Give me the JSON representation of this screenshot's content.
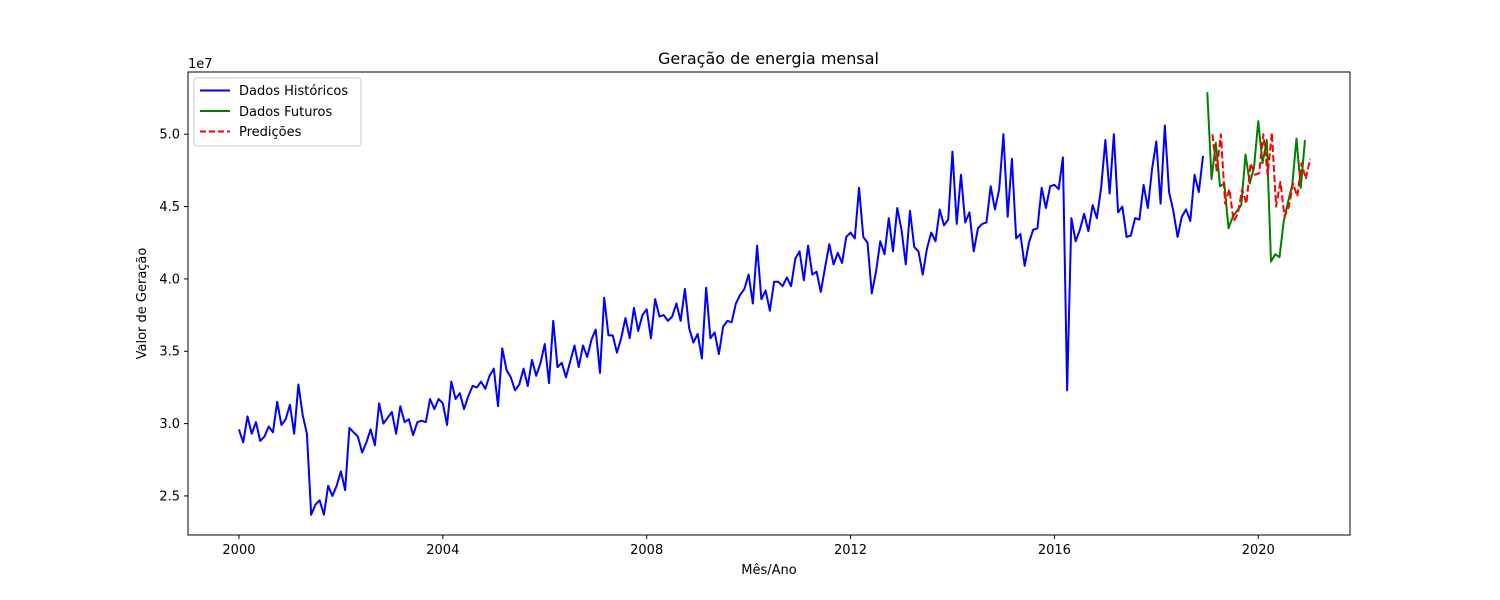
{
  "chart_data": {
    "type": "line",
    "title": "Geração de energia mensal",
    "xlabel": "Mês/Ano",
    "ylabel": "Valor de Geração",
    "y_offset_label": "1e7",
    "y_scale_factor": 10000000,
    "xlim": [
      1999.0,
      2021.8
    ],
    "ylim": [
      2.23,
      5.43
    ],
    "x_ticks": [
      2000,
      2004,
      2008,
      2012,
      2016,
      2020
    ],
    "y_ticks": [
      2.5,
      3.0,
      3.5,
      4.0,
      4.5,
      5.0
    ],
    "y_tick_labels": [
      "2.5",
      "3.0",
      "3.5",
      "4.0",
      "4.5",
      "5.0"
    ],
    "grid": false,
    "legend_position": "top-left",
    "series": [
      {
        "name": "Dados Históricos",
        "color": "#0000ff",
        "style": "solid",
        "start_year": 2000,
        "step_months": 1,
        "values": [
          2.96,
          2.87,
          3.05,
          2.93,
          3.01,
          2.88,
          2.91,
          2.98,
          2.94,
          3.15,
          2.99,
          3.03,
          3.13,
          2.93,
          3.27,
          3.06,
          2.93,
          2.37,
          2.44,
          2.47,
          2.37,
          2.57,
          2.5,
          2.57,
          2.67,
          2.54,
          2.97,
          2.94,
          2.91,
          2.8,
          2.87,
          2.96,
          2.85,
          3.14,
          3.0,
          3.04,
          3.08,
          2.93,
          3.12,
          3.01,
          3.03,
          2.92,
          3.01,
          3.02,
          3.01,
          3.17,
          3.1,
          3.17,
          3.14,
          2.99,
          3.29,
          3.17,
          3.21,
          3.1,
          3.19,
          3.26,
          3.25,
          3.29,
          3.24,
          3.33,
          3.38,
          3.12,
          3.52,
          3.37,
          3.32,
          3.23,
          3.27,
          3.38,
          3.26,
          3.44,
          3.33,
          3.42,
          3.55,
          3.28,
          3.71,
          3.39,
          3.42,
          3.32,
          3.43,
          3.54,
          3.39,
          3.54,
          3.46,
          3.58,
          3.65,
          3.35,
          3.87,
          3.61,
          3.61,
          3.49,
          3.59,
          3.73,
          3.59,
          3.8,
          3.64,
          3.75,
          3.79,
          3.59,
          3.86,
          3.74,
          3.75,
          3.71,
          3.74,
          3.83,
          3.71,
          3.93,
          3.66,
          3.56,
          3.62,
          3.45,
          3.94,
          3.59,
          3.63,
          3.48,
          3.67,
          3.71,
          3.7,
          3.83,
          3.89,
          3.93,
          4.03,
          3.83,
          4.23,
          3.86,
          3.92,
          3.78,
          3.98,
          3.98,
          3.95,
          4.01,
          3.95,
          4.14,
          4.19,
          3.99,
          4.23,
          4.03,
          4.05,
          3.91,
          4.08,
          4.24,
          4.1,
          4.18,
          4.11,
          4.29,
          4.32,
          4.28,
          4.63,
          4.29,
          4.25,
          3.9,
          4.05,
          4.26,
          4.17,
          4.42,
          4.19,
          4.49,
          4.34,
          4.1,
          4.47,
          4.22,
          4.19,
          4.03,
          4.21,
          4.32,
          4.26,
          4.48,
          4.37,
          4.41,
          4.88,
          4.38,
          4.72,
          4.39,
          4.46,
          4.19,
          4.35,
          4.38,
          4.39,
          4.64,
          4.48,
          4.62,
          5.0,
          4.43,
          4.83,
          4.28,
          4.31,
          4.09,
          4.25,
          4.34,
          4.35,
          4.63,
          4.49,
          4.64,
          4.65,
          4.62,
          4.84,
          3.23,
          4.42,
          4.26,
          4.34,
          4.45,
          4.33,
          4.51,
          4.42,
          4.63,
          4.96,
          4.59,
          5.0,
          4.46,
          4.5,
          4.29,
          4.3,
          4.42,
          4.41,
          4.65,
          4.49,
          4.76,
          4.95,
          4.52,
          5.06,
          4.6,
          4.47,
          4.29,
          4.43,
          4.48,
          4.4,
          4.72,
          4.6,
          4.85
        ]
      },
      {
        "name": "Dados Futuros",
        "color": "#008000",
        "style": "solid",
        "start_year": 2019,
        "step_months": 1,
        "values": [
          5.29,
          4.69,
          4.94,
          4.64,
          4.66,
          4.35,
          4.43,
          4.47,
          4.51,
          4.86,
          4.66,
          4.77,
          5.09,
          4.8,
          4.96,
          4.12,
          4.17,
          4.15,
          4.4,
          4.53,
          4.65,
          4.97,
          4.63,
          4.96
        ]
      },
      {
        "name": "Predições",
        "color": "#ff0000",
        "style": "dashed",
        "start_year": 2019.1,
        "step_months": 1,
        "values": [
          5.0,
          4.75,
          5.0,
          4.52,
          4.62,
          4.4,
          4.45,
          4.62,
          4.52,
          4.8,
          4.72,
          4.73,
          5.0,
          4.72,
          5.01,
          4.5,
          4.67,
          4.43,
          4.5,
          4.66,
          4.57,
          4.8,
          4.69,
          4.83
        ]
      }
    ]
  }
}
